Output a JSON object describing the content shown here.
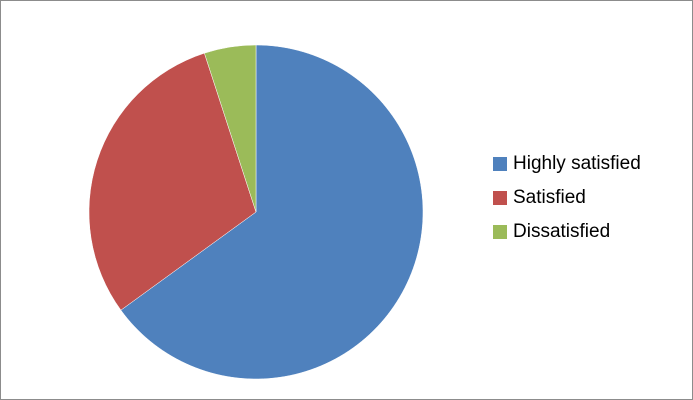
{
  "chart_data": {
    "type": "pie",
    "title": "",
    "categories": [
      "Highly satisfied",
      "Satisfied",
      "Dissatisfied"
    ],
    "values": [
      65,
      30,
      5
    ],
    "colors": [
      "#4f81bd",
      "#c0504d",
      "#9bbb59"
    ],
    "start_angle_deg": 0,
    "direction": "clockwise",
    "legend_position": "right"
  },
  "legend": {
    "items": [
      {
        "label": "Highly satisfied",
        "color": "#4f81bd"
      },
      {
        "label": "Satisfied",
        "color": "#c0504d"
      },
      {
        "label": "Dissatisfied",
        "color": "#9bbb59"
      }
    ]
  }
}
